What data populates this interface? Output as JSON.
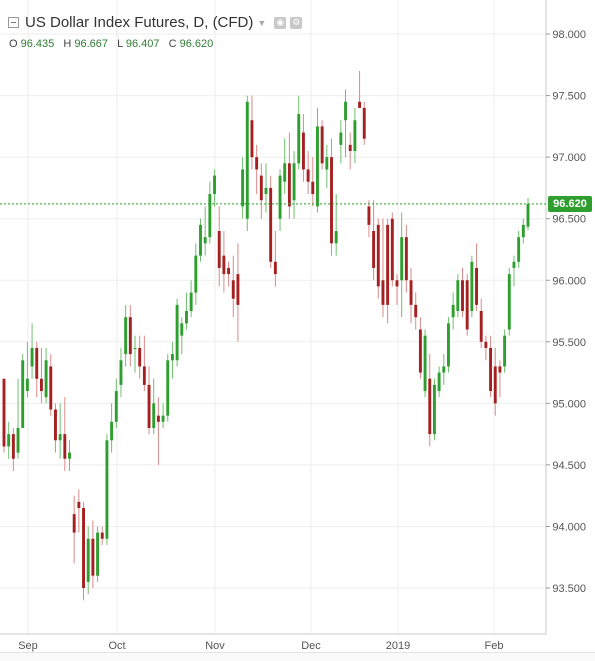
{
  "header": {
    "title": "US Dollar Index Futures, D, (CFD)",
    "ohlc": {
      "o_label": "O",
      "o_value": "96.435",
      "h_label": "H",
      "h_value": "96.667",
      "l_label": "L",
      "l_value": "96.407",
      "c_label": "C",
      "c_value": "96.620"
    }
  },
  "last_price_label": "96.620",
  "colors": {
    "up": "#2e9f2e",
    "down": "#a52020",
    "wick_up": "#6fbf6f",
    "wick_down": "#d98a8a",
    "grid": "#eeeeee",
    "last_price_line": "#2e9f2e"
  },
  "chart_data": {
    "type": "candlestick",
    "title": "US Dollar Index Futures, D, (CFD)",
    "ylim": [
      93.25,
      98.2
    ],
    "yticks": [
      "93.500",
      "94.000",
      "94.500",
      "95.000",
      "95.500",
      "96.000",
      "96.500",
      "97.000",
      "97.500",
      "98.000"
    ],
    "xticks": [
      "Sep",
      "Oct",
      "Nov",
      "Dec",
      "2019",
      "Feb"
    ],
    "last_price": 96.62,
    "grid": true,
    "candles": [
      [
        95.2,
        95.2,
        94.6,
        94.65
      ],
      [
        94.65,
        94.85,
        94.55,
        94.75
      ],
      [
        94.75,
        94.8,
        94.45,
        94.55
      ],
      [
        94.6,
        95.2,
        94.55,
        94.8
      ],
      [
        94.8,
        95.4,
        94.8,
        95.35
      ],
      [
        95.1,
        95.5,
        95.05,
        95.2
      ],
      [
        95.3,
        95.65,
        95.2,
        95.45
      ],
      [
        95.45,
        95.5,
        95.05,
        95.2
      ],
      [
        95.2,
        95.45,
        95.0,
        95.1
      ],
      [
        95.05,
        95.45,
        95.0,
        95.35
      ],
      [
        95.3,
        95.4,
        94.9,
        94.95
      ],
      [
        94.95,
        95.0,
        94.6,
        94.7
      ],
      [
        94.7,
        95.0,
        94.55,
        94.75
      ],
      [
        94.75,
        95.05,
        94.45,
        94.55
      ],
      [
        94.55,
        94.7,
        94.45,
        94.6
      ],
      [
        94.1,
        94.25,
        93.7,
        93.95
      ],
      [
        94.2,
        94.3,
        93.95,
        94.15
      ],
      [
        94.15,
        94.2,
        93.4,
        93.5
      ],
      [
        93.55,
        94.0,
        93.45,
        93.9
      ],
      [
        93.9,
        94.05,
        93.5,
        93.6
      ],
      [
        93.6,
        94.0,
        93.55,
        93.95
      ],
      [
        93.95,
        94.0,
        93.85,
        93.9
      ],
      [
        93.9,
        94.75,
        93.85,
        94.7
      ],
      [
        94.7,
        95.0,
        94.6,
        94.85
      ],
      [
        94.85,
        95.2,
        94.8,
        95.1
      ],
      [
        95.15,
        95.45,
        95.05,
        95.35
      ],
      [
        95.4,
        95.8,
        95.3,
        95.7
      ],
      [
        95.7,
        95.8,
        95.3,
        95.4
      ],
      [
        95.45,
        95.55,
        95.25,
        95.45
      ],
      [
        95.45,
        95.55,
        95.2,
        95.3
      ],
      [
        95.3,
        95.55,
        95.1,
        95.15
      ],
      [
        95.15,
        95.3,
        94.75,
        94.8
      ],
      [
        94.8,
        95.2,
        94.75,
        95.0
      ],
      [
        94.9,
        95.05,
        94.5,
        94.85
      ],
      [
        94.85,
        95.0,
        94.8,
        94.9
      ],
      [
        94.9,
        95.4,
        94.85,
        95.35
      ],
      [
        95.35,
        95.5,
        95.2,
        95.4
      ],
      [
        95.35,
        95.85,
        95.3,
        95.8
      ],
      [
        95.55,
        95.7,
        95.4,
        95.65
      ],
      [
        95.65,
        95.9,
        95.6,
        95.75
      ],
      [
        95.75,
        96.0,
        95.7,
        95.9
      ],
      [
        95.9,
        96.3,
        95.8,
        96.2
      ],
      [
        96.2,
        96.5,
        96.15,
        96.45
      ],
      [
        96.3,
        96.6,
        96.2,
        96.35
      ],
      [
        96.35,
        96.8,
        96.3,
        96.7
      ],
      [
        96.7,
        96.9,
        96.6,
        96.85
      ],
      [
        96.4,
        96.6,
        95.95,
        96.1
      ],
      [
        96.2,
        96.4,
        95.9,
        96.05
      ],
      [
        96.1,
        96.15,
        95.95,
        96.05
      ],
      [
        96.0,
        96.2,
        95.7,
        95.85
      ],
      [
        96.05,
        96.3,
        95.5,
        95.8
      ],
      [
        96.6,
        97.0,
        96.5,
        96.9
      ],
      [
        96.5,
        97.5,
        96.4,
        97.45
      ],
      [
        97.3,
        97.5,
        96.9,
        97.0
      ],
      [
        97.0,
        97.1,
        96.7,
        96.9
      ],
      [
        96.85,
        96.95,
        96.5,
        96.65
      ],
      [
        96.7,
        96.95,
        96.55,
        96.75
      ],
      [
        96.75,
        96.85,
        96.1,
        96.15
      ],
      [
        96.15,
        96.4,
        95.95,
        96.05
      ],
      [
        96.5,
        96.9,
        96.4,
        96.85
      ],
      [
        96.8,
        97.15,
        96.7,
        96.95
      ],
      [
        96.95,
        97.2,
        96.5,
        96.6
      ],
      [
        96.65,
        97.05,
        96.5,
        96.95
      ],
      [
        96.95,
        97.5,
        96.9,
        97.35
      ],
      [
        97.2,
        97.35,
        96.8,
        96.9
      ],
      [
        96.9,
        97.05,
        96.7,
        96.8
      ],
      [
        96.8,
        97.0,
        96.6,
        96.7
      ],
      [
        96.6,
        97.4,
        96.55,
        97.25
      ],
      [
        97.25,
        97.3,
        96.9,
        96.95
      ],
      [
        96.9,
        97.1,
        96.75,
        97.0
      ],
      [
        97.0,
        97.15,
        96.2,
        96.3
      ],
      [
        96.3,
        96.7,
        96.2,
        96.4
      ],
      [
        97.1,
        97.3,
        96.95,
        97.2
      ],
      [
        97.3,
        97.55,
        97.0,
        97.45
      ],
      [
        97.1,
        97.2,
        96.9,
        97.05
      ],
      [
        97.05,
        97.4,
        96.95,
        97.3
      ],
      [
        97.45,
        97.7,
        97.4,
        97.4
      ],
      [
        97.4,
        97.45,
        97.1,
        97.15
      ],
      [
        96.6,
        96.65,
        96.35,
        96.45
      ],
      [
        96.4,
        96.65,
        96.0,
        96.1
      ],
      [
        96.45,
        96.5,
        95.85,
        95.95
      ],
      [
        96.0,
        96.5,
        95.7,
        95.8
      ],
      [
        96.45,
        96.5,
        95.65,
        95.8
      ],
      [
        96.5,
        96.55,
        95.95,
        96.0
      ],
      [
        96.0,
        96.05,
        95.8,
        95.95
      ],
      [
        96.0,
        96.55,
        95.7,
        96.35
      ],
      [
        96.35,
        96.45,
        95.9,
        96.0
      ],
      [
        96.0,
        96.1,
        95.65,
        95.8
      ],
      [
        95.8,
        95.9,
        95.6,
        95.7
      ],
      [
        95.6,
        95.7,
        95.2,
        95.25
      ],
      [
        95.1,
        95.6,
        95.05,
        95.55
      ],
      [
        95.2,
        95.4,
        94.65,
        94.75
      ],
      [
        94.75,
        95.2,
        94.7,
        95.15
      ],
      [
        95.1,
        95.3,
        95.05,
        95.25
      ],
      [
        95.25,
        95.4,
        95.15,
        95.3
      ],
      [
        95.3,
        95.7,
        95.25,
        95.65
      ],
      [
        95.7,
        95.9,
        95.6,
        95.8
      ],
      [
        95.75,
        96.05,
        95.7,
        96.0
      ],
      [
        96.0,
        96.1,
        95.7,
        95.75
      ],
      [
        96.0,
        96.05,
        95.55,
        95.6
      ],
      [
        95.75,
        96.2,
        95.7,
        96.15
      ],
      [
        96.1,
        96.3,
        95.75,
        95.8
      ],
      [
        95.75,
        95.85,
        95.45,
        95.5
      ],
      [
        95.5,
        95.55,
        95.35,
        95.45
      ],
      [
        95.45,
        95.55,
        95.05,
        95.1
      ],
      [
        95.3,
        95.45,
        94.9,
        95.0
      ],
      [
        95.3,
        95.35,
        95.05,
        95.25
      ],
      [
        95.3,
        95.6,
        95.25,
        95.55
      ],
      [
        95.6,
        96.1,
        95.55,
        96.05
      ],
      [
        96.1,
        96.2,
        95.95,
        96.15
      ],
      [
        96.15,
        96.4,
        96.1,
        96.35
      ],
      [
        96.35,
        96.5,
        96.3,
        96.45
      ],
      [
        96.435,
        96.667,
        96.407,
        96.62
      ]
    ]
  }
}
